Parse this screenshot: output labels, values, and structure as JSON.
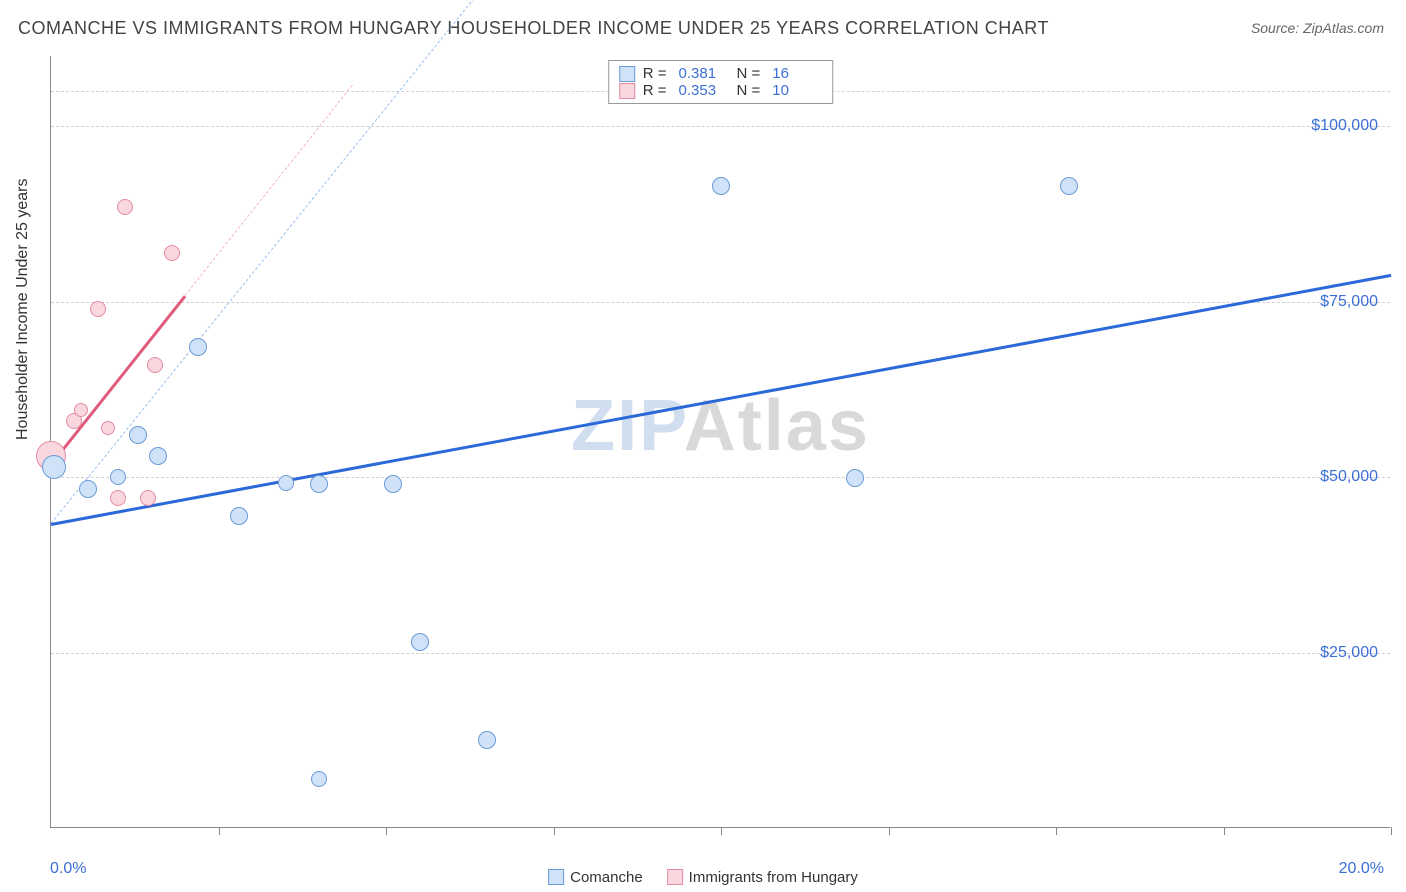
{
  "title": "COMANCHE VS IMMIGRANTS FROM HUNGARY HOUSEHOLDER INCOME UNDER 25 YEARS CORRELATION CHART",
  "source": "Source: ZipAtlas.com",
  "y_axis_title": "Householder Income Under 25 years",
  "watermark": {
    "z": "ZIP",
    "rest": "Atlas"
  },
  "chart": {
    "type": "scatter",
    "xlim": [
      0,
      20
    ],
    "ylim": [
      0,
      110000
    ],
    "x_ticks": [
      2.5,
      5.0,
      7.5,
      10.0,
      12.5,
      15.0,
      17.5,
      20.0
    ],
    "x_labels": {
      "min": "0.0%",
      "max": "20.0%"
    },
    "y_gridlines": [
      25000,
      50000,
      75000,
      100000,
      105000
    ],
    "y_tick_labels": [
      {
        "value": 25000,
        "label": "$25,000"
      },
      {
        "value": 50000,
        "label": "$50,000"
      },
      {
        "value": 75000,
        "label": "$75,000"
      },
      {
        "value": 100000,
        "label": "$100,000"
      }
    ],
    "background_color": "#ffffff",
    "grid_color": "#d0d0d0"
  },
  "series": {
    "comanche": {
      "label": "Comanche",
      "fill": "#cfe2f8",
      "stroke": "#6b9bd8",
      "R": "0.381",
      "N": "16",
      "points": [
        {
          "x": 0.05,
          "y": 51500,
          "r": 12
        },
        {
          "x": 0.55,
          "y": 48300,
          "r": 9
        },
        {
          "x": 1.0,
          "y": 50000,
          "r": 8
        },
        {
          "x": 1.3,
          "y": 56000,
          "r": 9
        },
        {
          "x": 1.6,
          "y": 53000,
          "r": 9
        },
        {
          "x": 2.2,
          "y": 68500,
          "r": 9
        },
        {
          "x": 2.8,
          "y": 44500,
          "r": 9
        },
        {
          "x": 3.5,
          "y": 49200,
          "r": 8
        },
        {
          "x": 4.0,
          "y": 49000,
          "r": 9
        },
        {
          "x": 4.0,
          "y": 7000,
          "r": 8
        },
        {
          "x": 5.1,
          "y": 49000,
          "r": 9
        },
        {
          "x": 5.5,
          "y": 26500,
          "r": 9
        },
        {
          "x": 6.5,
          "y": 12500,
          "r": 9
        },
        {
          "x": 10.0,
          "y": 91500,
          "r": 9
        },
        {
          "x": 12.0,
          "y": 49800,
          "r": 9
        },
        {
          "x": 15.2,
          "y": 91500,
          "r": 9
        }
      ],
      "trend": {
        "x1": 0,
        "y1": 43500,
        "x2": 20,
        "y2": 79000,
        "color": "#2b68d8"
      },
      "trend_dash": {
        "x1": 0,
        "y1": 43500,
        "x2": 7.3,
        "y2": 130000,
        "color": "#9cc0ee"
      }
    },
    "hungary": {
      "label": "Immigrants from Hungary",
      "fill": "#f9d7de",
      "stroke": "#e48ba2",
      "R": "0.353",
      "N": "10",
      "points": [
        {
          "x": 0.0,
          "y": 53000,
          "r": 15
        },
        {
          "x": 0.35,
          "y": 58000,
          "r": 8
        },
        {
          "x": 0.45,
          "y": 59500,
          "r": 7
        },
        {
          "x": 0.7,
          "y": 74000,
          "r": 8
        },
        {
          "x": 0.85,
          "y": 57000,
          "r": 7
        },
        {
          "x": 1.0,
          "y": 47000,
          "r": 8
        },
        {
          "x": 1.1,
          "y": 88500,
          "r": 8
        },
        {
          "x": 1.45,
          "y": 47000,
          "r": 8
        },
        {
          "x": 1.55,
          "y": 66000,
          "r": 8
        },
        {
          "x": 1.8,
          "y": 82000,
          "r": 8
        }
      ],
      "trend": {
        "x1": 0,
        "y1": 52000,
        "x2": 2.0,
        "y2": 76000,
        "color": "#e05a7a"
      },
      "trend_dash": {
        "x1": 2.0,
        "y1": 76000,
        "x2": 4.5,
        "y2": 106000,
        "color": "#f3b6c4"
      }
    }
  },
  "legend_top": {
    "r_label": "R  =",
    "n_label": "N  ="
  }
}
